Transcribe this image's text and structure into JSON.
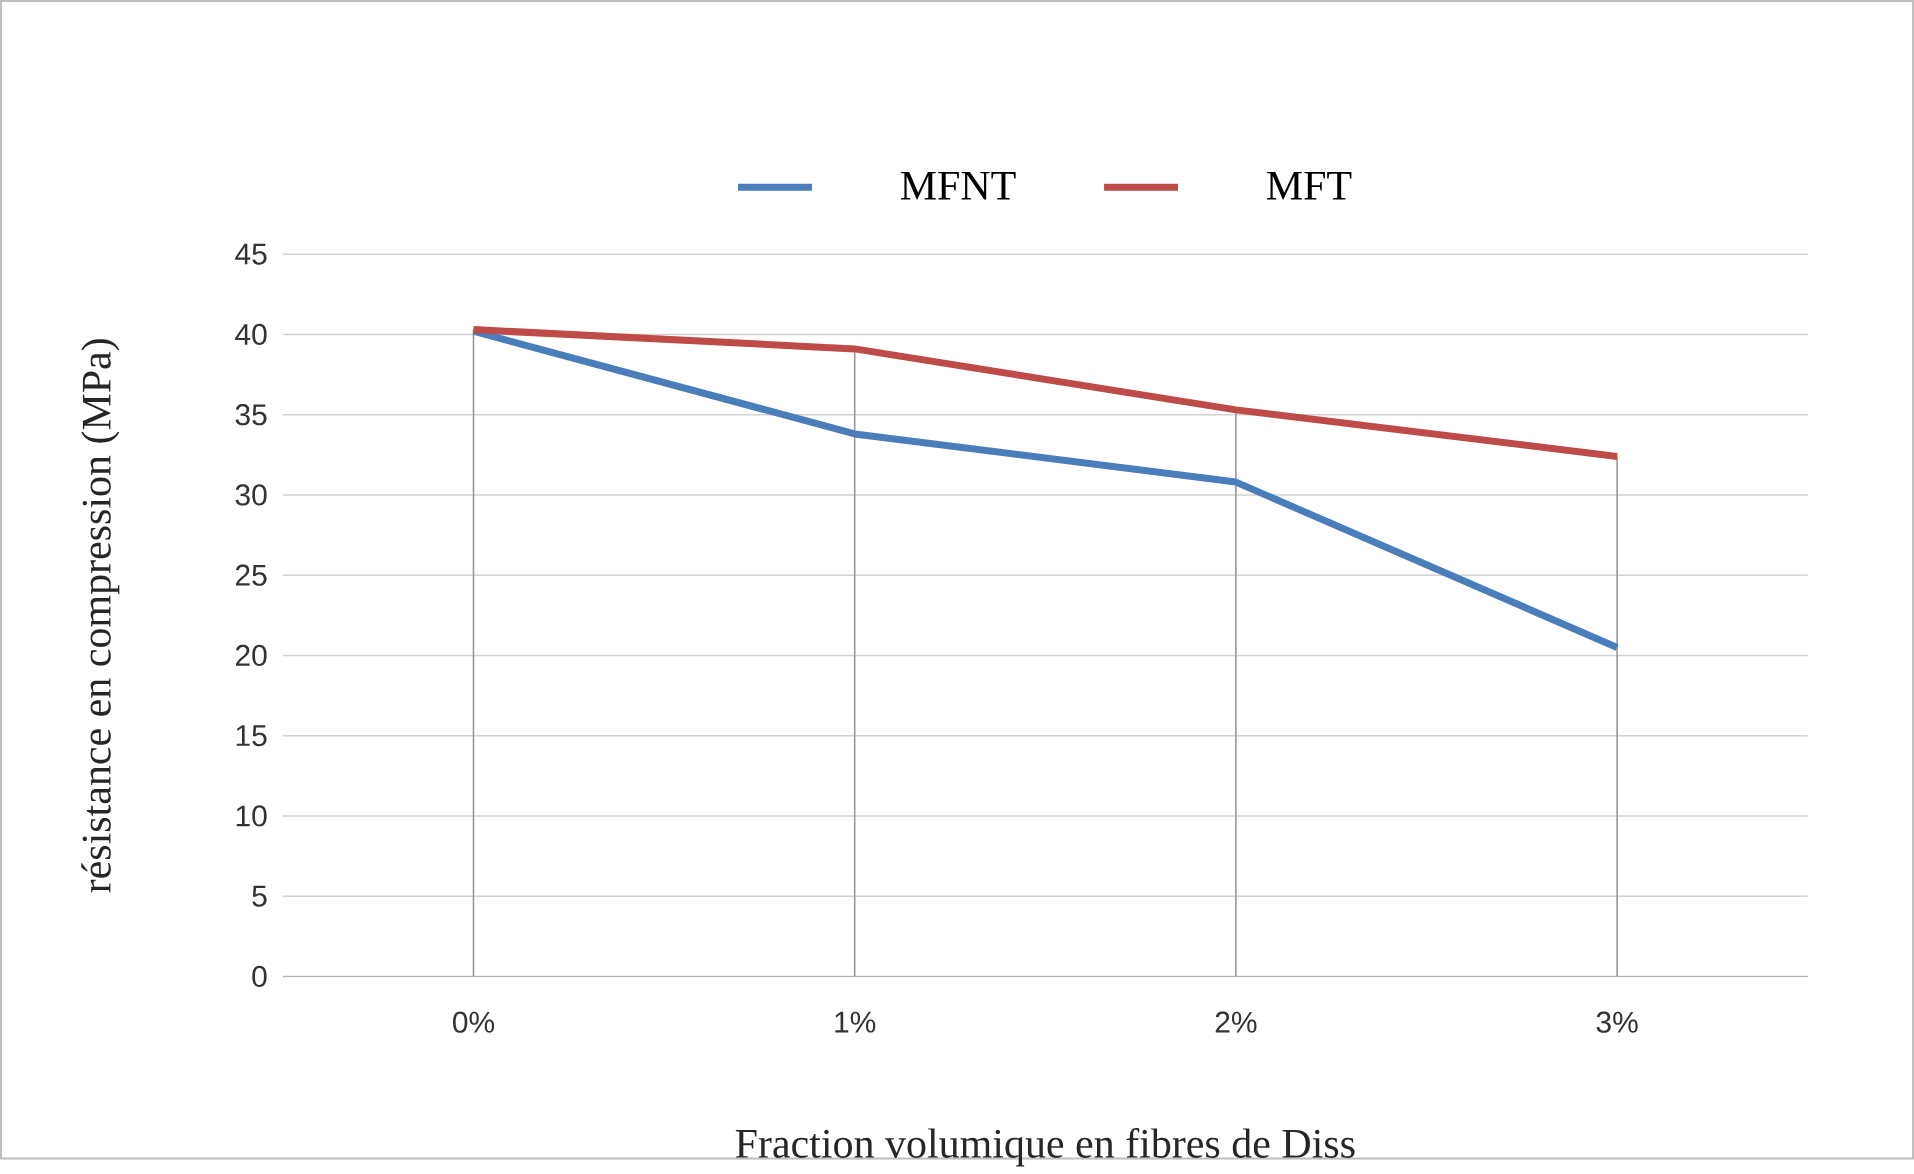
{
  "chart_data": {
    "type": "line",
    "xlabel": "Fraction volumique en fibres de Diss",
    "ylabel": "résistance  en compression (MPa)",
    "categories": [
      "0%",
      "1%",
      "2%",
      "3%"
    ],
    "series": [
      {
        "name": "MFNT",
        "color": "#4a7ebb",
        "values": [
          40.2,
          33.8,
          30.8,
          20.5
        ]
      },
      {
        "name": "MFT",
        "color": "#be4b48",
        "values": [
          40.3,
          39.1,
          35.3,
          32.4
        ]
      }
    ],
    "ylim": [
      0,
      45
    ],
    "yticks": [
      0,
      5,
      10,
      15,
      20,
      25,
      30,
      35,
      40,
      45
    ],
    "grid": true,
    "legend": "top",
    "marker": "none",
    "line_style": "solid"
  }
}
